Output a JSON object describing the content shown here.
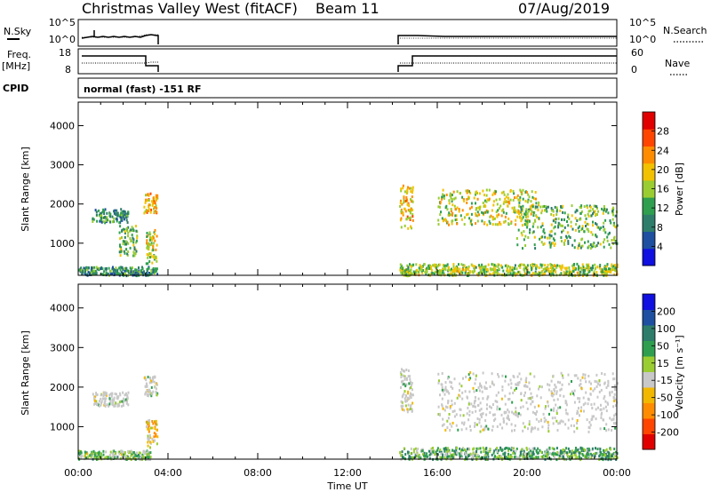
{
  "header": {
    "site": "Christmas Valley West (fitACF)",
    "beam": "Beam 11",
    "date": "07/Aug/2019"
  },
  "params_panel": {
    "nsky_label": "N.Sky",
    "nsky_ticks": [
      "10^5",
      "10^0"
    ],
    "nsearch_label": "N.Search",
    "nsearch_ticks": [
      "10^5",
      "10^0"
    ],
    "freq_label": "Freq.",
    "freq_unit": "[MHz]",
    "freq_ticks": [
      "18",
      "8"
    ],
    "nave_label": "Nave",
    "nave_ticks": [
      "60",
      "0"
    ],
    "cpid_label": "CPID",
    "cpid_text": "normal (fast) -151 RF"
  },
  "x_axis": {
    "label": "Time UT",
    "ticks": [
      "00:00",
      "04:00",
      "08:00",
      "12:00",
      "16:00",
      "20:00",
      "00:00"
    ]
  },
  "colors": {
    "power": [
      "#1010e0",
      "#1e4fa0",
      "#2e7d6a",
      "#2f9f4f",
      "#9acd32",
      "#f2c200",
      "#ff8c00",
      "#ff4500",
      "#e00000"
    ],
    "velocity": [
      "#e00000",
      "#ff4500",
      "#ff8c00",
      "#f2b800",
      "#c8c8c8",
      "#9acd32",
      "#2f9f4f",
      "#2e7d6a",
      "#1e4fa0",
      "#1010e0"
    ]
  },
  "chart_data": [
    {
      "type": "heatmap",
      "title": "",
      "xlabel": "Time UT",
      "ylabel": "Slant Range [km]",
      "xlim_hours": [
        0,
        24
      ],
      "ylim": [
        180,
        4600
      ],
      "y_ticks": [
        "1000",
        "2000",
        "3000",
        "4000"
      ],
      "colorbar": {
        "label": "Power [dB]",
        "range": [
          0,
          32
        ],
        "ticks": [
          "4",
          "8",
          "12",
          "16",
          "20",
          "24",
          "28"
        ]
      },
      "data_gap_hours": [
        3.5,
        14.3
      ],
      "scatter_regions": [
        {
          "t": [
            0.6,
            2.2
          ],
          "range": [
            1550,
            1900
          ],
          "power": 10
        },
        {
          "t": [
            1.8,
            2.6
          ],
          "range": [
            700,
            1500
          ],
          "power": 14
        },
        {
          "t": [
            2.9,
            3.5
          ],
          "range": [
            1800,
            2300
          ],
          "power": 20
        },
        {
          "t": [
            3.0,
            3.5
          ],
          "range": [
            500,
            1400
          ],
          "power": 18
        },
        {
          "t": [
            14.3,
            14.9
          ],
          "range": [
            1400,
            2500
          ],
          "power": 20
        },
        {
          "t": [
            16.0,
            20.5
          ],
          "range": [
            1500,
            2400
          ],
          "power": 18
        },
        {
          "t": [
            19.5,
            24.0
          ],
          "range": [
            900,
            2000
          ],
          "power": 14
        },
        {
          "t": [
            0.0,
            3.5
          ],
          "range": [
            200,
            420
          ],
          "power": 10
        },
        {
          "t": [
            14.3,
            24.0
          ],
          "range": [
            200,
            500
          ],
          "power": 16
        }
      ]
    },
    {
      "type": "heatmap",
      "title": "",
      "xlabel": "Time UT",
      "ylabel": "Slant Range [km]",
      "xlim_hours": [
        0,
        24
      ],
      "ylim": [
        180,
        4600
      ],
      "y_ticks": [
        "1000",
        "2000",
        "3000",
        "4000"
      ],
      "colorbar": {
        "label": "Velocity [m s⁻¹]",
        "range": [
          -250,
          250
        ],
        "ticks": [
          "200",
          "100",
          "50",
          "15",
          "-15",
          "-50",
          "-100",
          "-200"
        ]
      },
      "data_gap_hours": [
        3.5,
        14.3
      ],
      "scatter_regions": [
        {
          "t": [
            0.6,
            2.2
          ],
          "range": [
            1550,
            1900
          ],
          "velocity": 0
        },
        {
          "t": [
            2.9,
            3.5
          ],
          "range": [
            1800,
            2300
          ],
          "velocity": 0
        },
        {
          "t": [
            3.0,
            3.5
          ],
          "range": [
            500,
            1200
          ],
          "velocity": -60
        },
        {
          "t": [
            14.3,
            14.9
          ],
          "range": [
            1400,
            2500
          ],
          "velocity": 0
        },
        {
          "t": [
            16.0,
            24.0
          ],
          "range": [
            900,
            2400
          ],
          "velocity": 0
        },
        {
          "t": [
            0.0,
            3.2
          ],
          "range": [
            200,
            420
          ],
          "velocity": 30
        },
        {
          "t": [
            14.3,
            24.0
          ],
          "range": [
            200,
            500
          ],
          "velocity": 60
        }
      ]
    }
  ]
}
